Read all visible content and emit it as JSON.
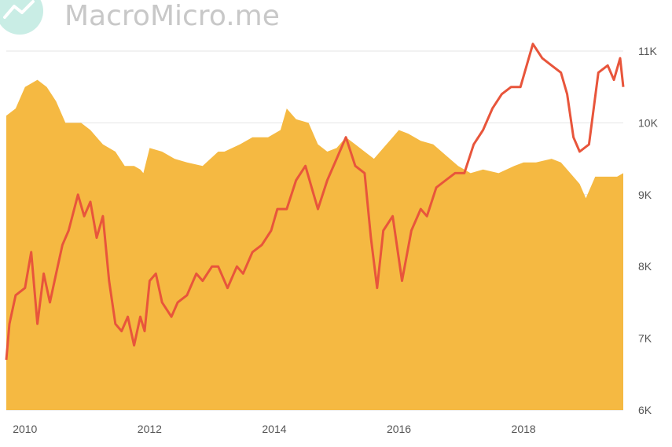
{
  "watermark": {
    "text": "MacroMicro.me",
    "icon": "macromicro-logo-icon"
  },
  "colors": {
    "area": "#f5b942",
    "line": "#e8553b",
    "grid": "#e4e4e4",
    "axis_text": "#555555",
    "watermark": "#c8c8c8",
    "watermark_icon": "#c9ede5"
  },
  "chart_data": {
    "type": "area",
    "title": "",
    "xlabel": "",
    "ylabel": "",
    "xlim": [
      2009.7,
      2019.6
    ],
    "ylim": [
      6000,
      11000
    ],
    "grid": "horizontal",
    "x_ticks": [
      {
        "value": 2010,
        "label": "2010"
      },
      {
        "value": 2012,
        "label": "2012"
      },
      {
        "value": 2014,
        "label": "2014"
      },
      {
        "value": 2016,
        "label": "2016"
      },
      {
        "value": 2018,
        "label": "2018"
      }
    ],
    "y_ticks": [
      {
        "value": 6000,
        "label": "6K"
      },
      {
        "value": 7000,
        "label": "7K"
      },
      {
        "value": 8000,
        "label": "8K"
      },
      {
        "value": 9000,
        "label": "9K"
      },
      {
        "value": 10000,
        "label": "10K"
      },
      {
        "value": 11000,
        "label": "11K"
      }
    ],
    "series": [
      {
        "type": "area",
        "x": [
          2009.7,
          2009.85,
          2010.0,
          2010.2,
          2010.35,
          2010.5,
          2010.65,
          2010.9,
          2011.05,
          2011.25,
          2011.45,
          2011.6,
          2011.75,
          2011.85,
          2011.9,
          2012.0,
          2012.2,
          2012.4,
          2012.6,
          2012.85,
          2013.1,
          2013.2,
          2013.45,
          2013.65,
          2013.9,
          2014.1,
          2014.2,
          2014.35,
          2014.55,
          2014.7,
          2014.85,
          2015.0,
          2015.15,
          2015.3,
          2015.45,
          2015.6,
          2015.75,
          2015.9,
          2016.0,
          2016.15,
          2016.35,
          2016.55,
          2016.75,
          2016.95,
          2017.15,
          2017.35,
          2017.6,
          2017.85,
          2018.0,
          2018.2,
          2018.45,
          2018.6,
          2018.75,
          2018.9,
          2019.0,
          2019.15,
          2019.35,
          2019.5,
          2019.6
        ],
        "y": [
          10100,
          10200,
          10500,
          10600,
          10500,
          10300,
          10000,
          10000,
          9900,
          9700,
          9600,
          9400,
          9400,
          9350,
          9300,
          9650,
          9600,
          9500,
          9450,
          9400,
          9600,
          9600,
          9700,
          9800,
          9800,
          9900,
          10200,
          10050,
          10000,
          9700,
          9600,
          9650,
          9800,
          9700,
          9600,
          9500,
          9650,
          9800,
          9900,
          9850,
          9750,
          9700,
          9550,
          9400,
          9300,
          9350,
          9300,
          9400,
          9450,
          9450,
          9500,
          9450,
          9300,
          9150,
          8950,
          9250,
          9250,
          9250,
          9300
        ]
      },
      {
        "type": "line",
        "x": [
          2009.7,
          2009.75,
          2009.85,
          2010.0,
          2010.1,
          2010.2,
          2010.3,
          2010.4,
          2010.5,
          2010.6,
          2010.7,
          2010.85,
          2010.95,
          2011.05,
          2011.15,
          2011.25,
          2011.35,
          2011.45,
          2011.55,
          2011.65,
          2011.75,
          2011.85,
          2011.92,
          2012.0,
          2012.1,
          2012.2,
          2012.35,
          2012.45,
          2012.6,
          2012.75,
          2012.85,
          2013.0,
          2013.1,
          2013.25,
          2013.4,
          2013.5,
          2013.65,
          2013.8,
          2013.95,
          2014.05,
          2014.2,
          2014.35,
          2014.5,
          2014.6,
          2014.7,
          2014.85,
          2015.0,
          2015.15,
          2015.3,
          2015.45,
          2015.55,
          2015.65,
          2015.75,
          2015.9,
          2016.05,
          2016.2,
          2016.35,
          2016.45,
          2016.6,
          2016.75,
          2016.9,
          2017.05,
          2017.2,
          2017.35,
          2017.5,
          2017.65,
          2017.8,
          2017.95,
          2018.05,
          2018.15,
          2018.3,
          2018.45,
          2018.6,
          2018.7,
          2018.8,
          2018.9,
          2019.05,
          2019.2,
          2019.35,
          2019.45,
          2019.55,
          2019.6
        ],
        "y": [
          6700,
          7200,
          7600,
          7700,
          8200,
          7200,
          7900,
          7500,
          7900,
          8300,
          8500,
          9000,
          8700,
          8900,
          8400,
          8700,
          7800,
          7200,
          7100,
          7300,
          6900,
          7300,
          7100,
          7800,
          7900,
          7500,
          7300,
          7500,
          7600,
          7900,
          7800,
          8000,
          8000,
          7700,
          8000,
          7900,
          8200,
          8300,
          8500,
          8800,
          8800,
          9200,
          9400,
          9100,
          8800,
          9200,
          9500,
          9800,
          9400,
          9300,
          8400,
          7700,
          8500,
          8700,
          7800,
          8500,
          8800,
          8700,
          9100,
          9200,
          9300,
          9300,
          9700,
          9900,
          10200,
          10400,
          10500,
          10500,
          10800,
          11100,
          10900,
          10800,
          10700,
          10400,
          9800,
          9600,
          9700,
          10700,
          10800,
          10600,
          10900,
          10500
        ]
      }
    ]
  }
}
